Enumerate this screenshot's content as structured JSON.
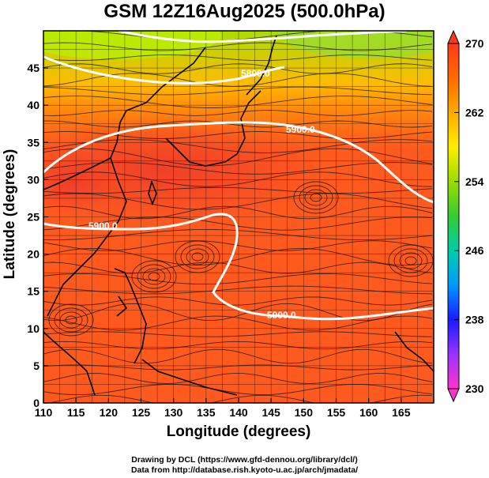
{
  "title": "GSM 12Z16Aug2025 (500.0hPa)",
  "x_axis_label": "Longitude (degrees)",
  "y_axis_label": "Latitude  (degrees)",
  "x_ticks": [
    "110",
    "115",
    "120",
    "125",
    "130",
    "135",
    "140",
    "145",
    "150",
    "155",
    "160",
    "165"
  ],
  "y_ticks": [
    "0",
    "5",
    "10",
    "15",
    "20",
    "25",
    "30",
    "35",
    "40",
    "45"
  ],
  "colorbar": {
    "ticks": [
      "230",
      "238",
      "246",
      "254",
      "262",
      "270"
    ],
    "colors": [
      "#ff33cc",
      "#9933ff",
      "#1a1aff",
      "#0099ff",
      "#00ccaa",
      "#33cc33",
      "#99dd00",
      "#ffee00",
      "#ffaa00",
      "#ff6a00",
      "#ff3a1a"
    ]
  },
  "contours": [
    {
      "label": "5900.0"
    },
    {
      "label": "5900.0"
    },
    {
      "label": "5900.0"
    },
    {
      "label": "5800.0"
    }
  ],
  "credits": [
    "Drawing by DCL (https://www.gfd-dennou.org/library/dcl/)",
    "Data from http://database.rish.kyoto-u.ac.jp/arch/jmadata/"
  ],
  "chart_data": {
    "type": "heatmap",
    "x_range": [
      110,
      170
    ],
    "y_range": [
      0,
      50
    ],
    "value_range": [
      230,
      270
    ],
    "contour_levels": [
      5800,
      5900
    ],
    "grid": true,
    "overlay": "streamlines"
  }
}
